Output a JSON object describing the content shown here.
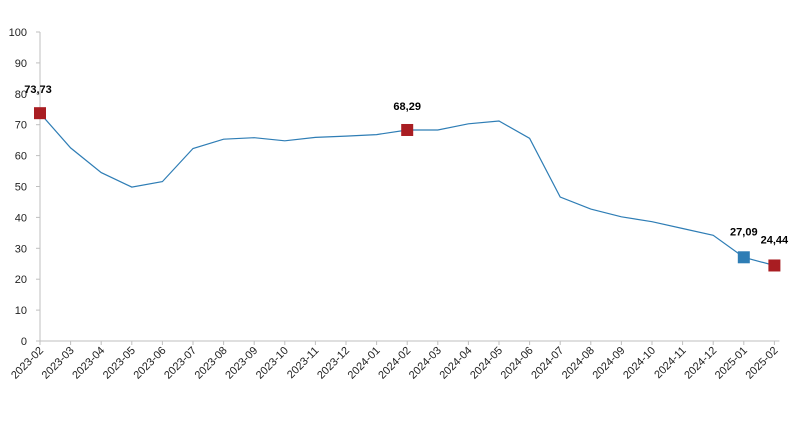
{
  "chart_data": {
    "type": "line",
    "title": "",
    "xlabel": "",
    "ylabel": "",
    "ylim": [
      0,
      100
    ],
    "yticks": [
      0,
      10,
      20,
      30,
      40,
      50,
      60,
      70,
      80,
      90,
      100
    ],
    "grid": false,
    "legend": "none",
    "categories": [
      "2023-02",
      "2023-03",
      "2023-04",
      "2023-05",
      "2023-06",
      "2023-07",
      "2023-08",
      "2023-09",
      "2023-10",
      "2023-11",
      "2023-12",
      "2024-01",
      "2024-02",
      "2024-03",
      "2024-04",
      "2024-05",
      "2024-06",
      "2024-07",
      "2024-08",
      "2024-09",
      "2024-10",
      "2024-11",
      "2024-12",
      "2025-01",
      "2025-02"
    ],
    "series": [
      {
        "values": [
          73.73,
          62.5,
          54.5,
          49.8,
          51.6,
          62.3,
          65.3,
          65.8,
          64.8,
          65.9,
          66.3,
          66.8,
          68.29,
          68.3,
          70.3,
          71.2,
          65.6,
          46.6,
          42.7,
          40.2,
          38.6,
          36.4,
          34.2,
          27.09,
          24.44
        ],
        "color": "#2E7DB5"
      }
    ],
    "markers": [
      {
        "index": 0,
        "label": "73,73",
        "color": "#A91D22"
      },
      {
        "index": 12,
        "label": "68,29",
        "color": "#A91D22"
      },
      {
        "index": 23,
        "label": "27,09",
        "color": "#2E7DB5"
      },
      {
        "index": 24,
        "label": "24,44",
        "color": "#A91D22"
      }
    ],
    "colors": {
      "axis": "#BFBFBF",
      "line": "#2E7DB5",
      "highlight": "#A91D22"
    }
  }
}
